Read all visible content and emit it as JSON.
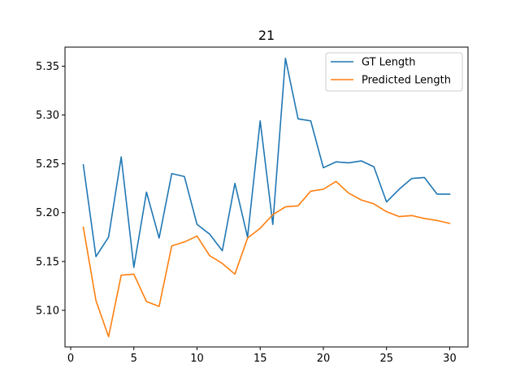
{
  "chart_data": {
    "type": "line",
    "title": "21",
    "xlabel": "",
    "ylabel": "",
    "xlim": [
      -0.45,
      31.45
    ],
    "ylim": [
      5.0625,
      5.3695
    ],
    "grid": false,
    "legend_position": "top-right",
    "x_ticks": [
      0,
      5,
      10,
      15,
      20,
      25,
      30
    ],
    "y_ticks": [
      5.1,
      5.15,
      5.2,
      5.25,
      5.3,
      5.35
    ],
    "x": [
      1,
      2,
      3,
      4,
      5,
      6,
      7,
      8,
      9,
      10,
      11,
      12,
      13,
      14,
      15,
      16,
      17,
      18,
      19,
      20,
      21,
      22,
      23,
      24,
      25,
      26,
      27,
      28,
      29,
      30
    ],
    "series": [
      {
        "name": "GT Length",
        "color": "#1f77b4",
        "values": [
          5.249,
          5.155,
          5.175,
          5.257,
          5.144,
          5.221,
          5.174,
          5.24,
          5.237,
          5.188,
          5.178,
          5.161,
          5.23,
          5.175,
          5.294,
          5.188,
          5.358,
          5.296,
          5.294,
          5.246,
          5.252,
          5.251,
          5.253,
          5.247,
          5.211,
          5.224,
          5.235,
          5.236,
          5.219,
          5.219
        ]
      },
      {
        "name": "Predicted Length",
        "color": "#ff7f0e",
        "values": [
          5.185,
          5.11,
          5.073,
          5.136,
          5.137,
          5.109,
          5.104,
          5.166,
          5.17,
          5.176,
          5.156,
          5.148,
          5.137,
          5.174,
          5.184,
          5.198,
          5.206,
          5.207,
          5.222,
          5.224,
          5.232,
          5.22,
          5.213,
          5.209,
          5.201,
          5.196,
          5.197,
          5.194,
          5.192,
          5.189
        ]
      }
    ]
  }
}
